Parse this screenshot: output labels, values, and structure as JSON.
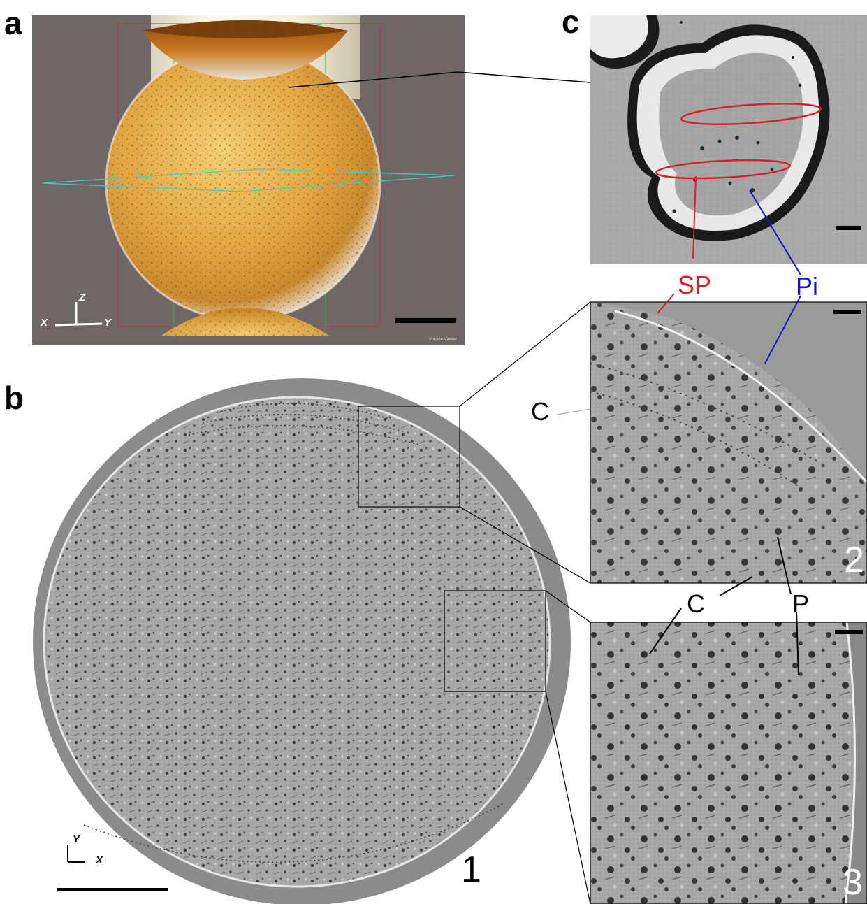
{
  "figure": {
    "panel_a": {
      "letter": "a",
      "axis_z": "Z",
      "axis_x": "X",
      "axis_y": "Y",
      "watermark": "Volume Viewer"
    },
    "panel_b": {
      "letter": "b",
      "axis_y": "Y",
      "axis_x": "X",
      "number": "1"
    },
    "panel_c": {
      "letter": "c"
    },
    "inset_2": {
      "number": "2"
    },
    "inset_3": {
      "number": "3"
    },
    "labels": {
      "sp": "SP",
      "pi": "Pi",
      "c_upper": "C",
      "c_lower": "C",
      "p": "P"
    },
    "colors": {
      "background_a": "#6e6564",
      "sphere_gold": "#e8b04a",
      "micro_gray": "#a6a6a6",
      "red_label": "#d9202a",
      "blue_label": "#1515c8"
    }
  }
}
